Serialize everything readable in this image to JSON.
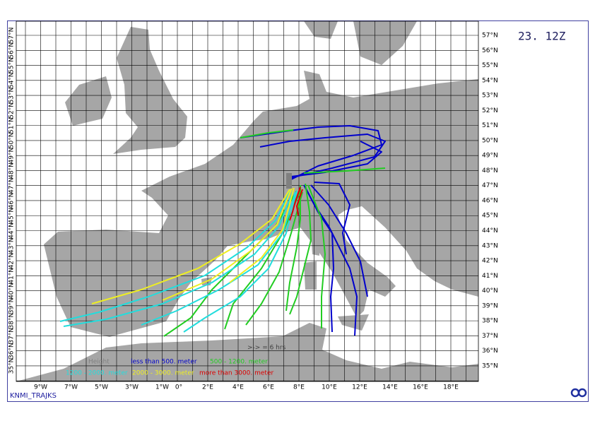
{
  "header": {
    "time": "23. 12Z"
  },
  "lon_labels": [
    "9°W",
    "7°W",
    "5°W",
    "3°W",
    "1°W",
    "0°",
    "2°E",
    "4°E",
    "6°E",
    "8°E",
    "10°E",
    "12°E",
    "14°E",
    "16°E",
    "18°E"
  ],
  "lat_labels": [
    "57°N",
    "56°N",
    "55°N",
    "54°N",
    "53°N",
    "52°N",
    "51°N",
    "50°N",
    "49°N",
    "48°N",
    "47°N",
    "46°N",
    "45°N",
    "44°N",
    "43°N",
    "42°N",
    "41°N",
    "40°N",
    "39°N",
    "38°N",
    "37°N",
    "36°N",
    "35°N"
  ],
  "legend": {
    "title": "Height",
    "items": [
      {
        "label": "less than  500. meter",
        "color": "#0000cc"
      },
      {
        "label": "500 -  1200. meter",
        "color": "#22cc22"
      },
      {
        "label": "1200 -  2000. meter",
        "color": "#22dddd"
      },
      {
        "label": "2000 -  3000. meter",
        "color": "#eeee22"
      },
      {
        "label": "more than  3000. meter",
        "color": "#dd0000"
      }
    ]
  },
  "scale_note": ">-> = 6 hrs",
  "footer": "KNMI_TRAJKS"
}
